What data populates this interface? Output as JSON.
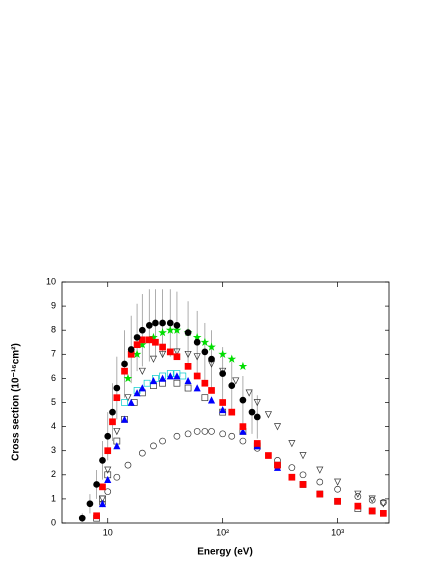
{
  "chart_data": {
    "type": "scatter",
    "x_label": "Energy (eV)",
    "y_label": "Cross section (10⁻¹⁶cm²)",
    "xlim": [
      4,
      2800
    ],
    "ylim": [
      0,
      10
    ],
    "log_x": true,
    "xticks": [
      10,
      {
        "value": 100,
        "label": "10²"
      },
      {
        "value": 1000,
        "label": "10³"
      }
    ],
    "yticks": [
      0,
      1,
      2,
      3,
      4,
      5,
      6,
      7,
      8,
      9,
      10
    ],
    "series": [
      {
        "color": "#000000",
        "marker": "filled-circle",
        "x": [
          6,
          7,
          8,
          9,
          10,
          11,
          12,
          14,
          16,
          18,
          20,
          23,
          26,
          30,
          35,
          40,
          50,
          60,
          70,
          80,
          100,
          120,
          150,
          180,
          200
        ],
        "values": [
          0.2,
          0.8,
          1.6,
          2.6,
          3.6,
          4.6,
          5.6,
          6.6,
          7.2,
          7.7,
          8.0,
          8.2,
          8.3,
          8.3,
          8.3,
          8.2,
          7.9,
          7.5,
          7.1,
          6.8,
          6.2,
          5.7,
          5.1,
          4.6,
          4.4
        ],
        "errors": [
          0.2,
          0.4,
          0.6,
          0.8,
          1.0,
          1.2,
          1.3,
          1.4,
          1.4,
          1.4,
          1.5,
          1.5,
          1.4,
          1.4,
          1.4,
          1.4,
          1.3,
          1.3,
          1.2,
          1.2,
          1.1,
          1.0,
          1.0,
          0.9,
          0.9
        ],
        "error_color": "#999999"
      },
      {
        "color": "#ff0000",
        "marker": "filled-square",
        "x": [
          8,
          9,
          10,
          11,
          12,
          14,
          16,
          18,
          20,
          23,
          26,
          30,
          35,
          40,
          50,
          60,
          70,
          80,
          100,
          120,
          150,
          200,
          250,
          300,
          400,
          500,
          700,
          1000,
          1500,
          2000,
          2500
        ],
        "values": [
          0.3,
          1.5,
          3.0,
          4.2,
          5.2,
          6.3,
          7.0,
          7.4,
          7.6,
          7.6,
          7.5,
          7.3,
          7.1,
          6.9,
          6.5,
          6.1,
          5.8,
          5.5,
          5.0,
          4.6,
          4.0,
          3.3,
          2.8,
          2.4,
          1.9,
          1.6,
          1.2,
          0.9,
          0.7,
          0.5,
          0.4
        ]
      },
      {
        "color": "#00dd00",
        "marker": "star",
        "x": [
          15,
          18,
          20,
          25,
          30,
          35,
          40,
          50,
          60,
          70,
          80,
          100,
          120,
          150
        ],
        "values": [
          6.0,
          7.0,
          7.4,
          7.7,
          7.9,
          8.0,
          8.0,
          7.9,
          7.7,
          7.5,
          7.3,
          7.0,
          6.8,
          6.5
        ]
      },
      {
        "color": "#0000ff",
        "marker": "filled-triangle",
        "x": [
          9,
          10,
          12,
          14,
          16,
          18,
          20,
          25,
          30,
          35,
          40,
          50,
          60,
          80,
          100,
          150,
          200,
          300
        ],
        "values": [
          0.8,
          1.8,
          3.2,
          4.3,
          5.0,
          5.4,
          5.6,
          5.9,
          6.0,
          6.1,
          6.1,
          5.9,
          5.6,
          5.1,
          4.7,
          3.8,
          3.2,
          2.3
        ]
      },
      {
        "color": "#00cccc",
        "marker": "open-square",
        "x": [
          14,
          18,
          22,
          26,
          30,
          35,
          40,
          45
        ],
        "values": [
          5.0,
          5.5,
          5.8,
          6.0,
          6.1,
          6.2,
          6.2,
          6.1
        ]
      },
      {
        "color": "#333333",
        "marker": "open-square",
        "x": [
          8,
          9,
          10,
          12,
          14,
          17,
          20,
          25,
          30,
          40,
          50,
          70,
          100,
          150,
          200,
          300,
          500,
          700,
          1000,
          1500,
          2000
        ],
        "values": [
          0.2,
          1.0,
          2.0,
          3.4,
          4.3,
          5.0,
          5.4,
          5.7,
          5.8,
          5.8,
          5.6,
          5.2,
          4.6,
          3.8,
          3.2,
          2.4,
          1.6,
          1.2,
          0.9,
          0.6,
          0.5
        ]
      },
      {
        "color": "#333333",
        "marker": "open-circle",
        "x": [
          9,
          10,
          12,
          15,
          20,
          25,
          30,
          40,
          50,
          60,
          70,
          80,
          100,
          120,
          150,
          200,
          300,
          400,
          500,
          700,
          1000,
          1500,
          2000,
          2500
        ],
        "values": [
          0.8,
          1.3,
          1.9,
          2.4,
          2.9,
          3.2,
          3.4,
          3.6,
          3.7,
          3.8,
          3.8,
          3.8,
          3.7,
          3.6,
          3.4,
          3.1,
          2.6,
          2.3,
          2.0,
          1.7,
          1.4,
          1.1,
          0.95,
          0.85
        ]
      },
      {
        "color": "#333333",
        "marker": "open-down-triangle",
        "x": [
          9,
          10,
          12,
          15,
          20,
          25,
          30,
          40,
          50,
          60,
          80,
          100,
          130,
          170,
          200,
          250,
          300,
          400,
          500,
          700,
          1000,
          1500,
          2000,
          2500
        ],
        "values": [
          1.0,
          2.2,
          3.8,
          5.2,
          6.3,
          6.8,
          7.0,
          7.1,
          7.0,
          6.9,
          6.6,
          6.3,
          5.9,
          5.4,
          5.0,
          4.5,
          4.0,
          3.3,
          2.8,
          2.2,
          1.7,
          1.2,
          1.0,
          0.8
        ]
      }
    ]
  }
}
